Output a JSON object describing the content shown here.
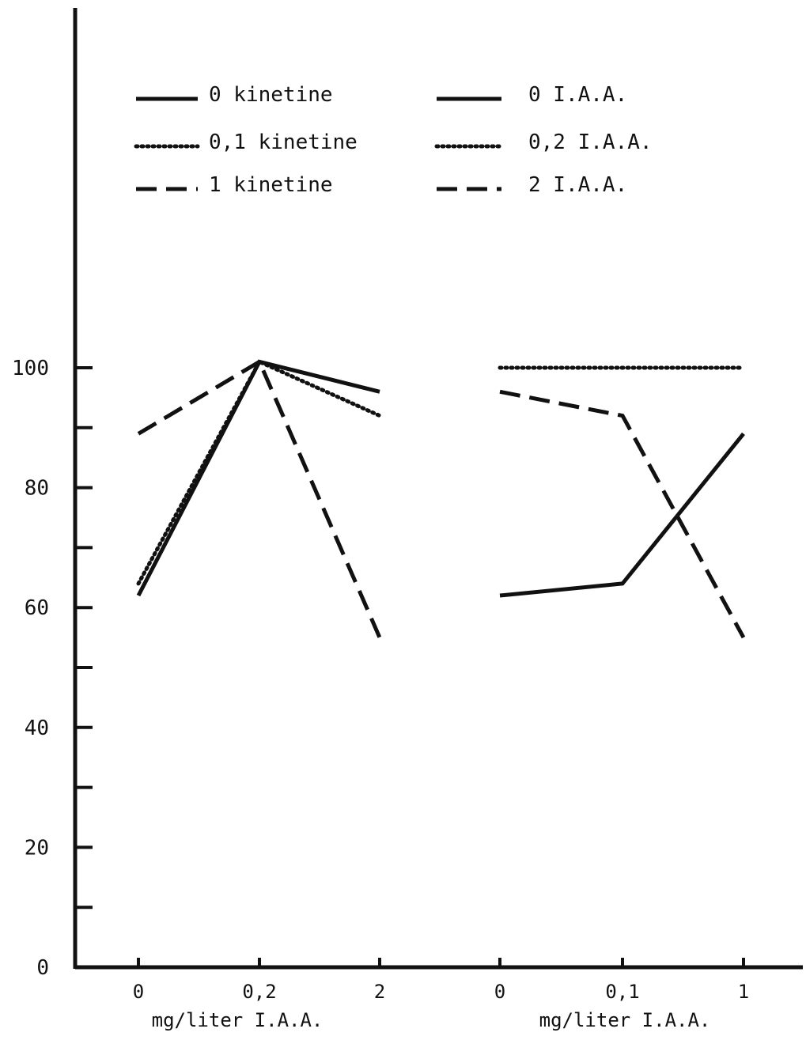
{
  "chart_data": {
    "type": "line",
    "ylim": [
      0,
      100
    ],
    "y_ticks": [
      0,
      20,
      40,
      60,
      80,
      100
    ],
    "y_minor_step": 10,
    "grid": false,
    "colors": {
      "ink": "#111111",
      "background": "#ffffff"
    },
    "panels": [
      {
        "x": [
          "0",
          "0,2",
          "2"
        ],
        "xlabel": "mg/liter I.A.A.",
        "series": [
          {
            "name": "0    kinetine",
            "line_style": "solid",
            "values": [
              62,
              101,
              96
            ]
          },
          {
            "name": "0,1 kinetine",
            "line_style": "dotted",
            "values": [
              64,
              101,
              92
            ]
          },
          {
            "name": "1    kinetine",
            "line_style": "dashed",
            "values": [
              89,
              101,
              55
            ]
          }
        ]
      },
      {
        "x": [
          "0",
          "0,1",
          "1"
        ],
        "xlabel": "mg/liter  I.A.A.",
        "series": [
          {
            "name": "0    I.A.A.",
            "line_style": "solid",
            "values": [
              62,
              64,
              89
            ]
          },
          {
            "name": "0,2 I.A.A.",
            "line_style": "dotted",
            "values": [
              100,
              100,
              100
            ]
          },
          {
            "name": "2    I.A.A.",
            "line_style": "dashed",
            "values": [
              96,
              92,
              55
            ]
          }
        ]
      }
    ]
  }
}
